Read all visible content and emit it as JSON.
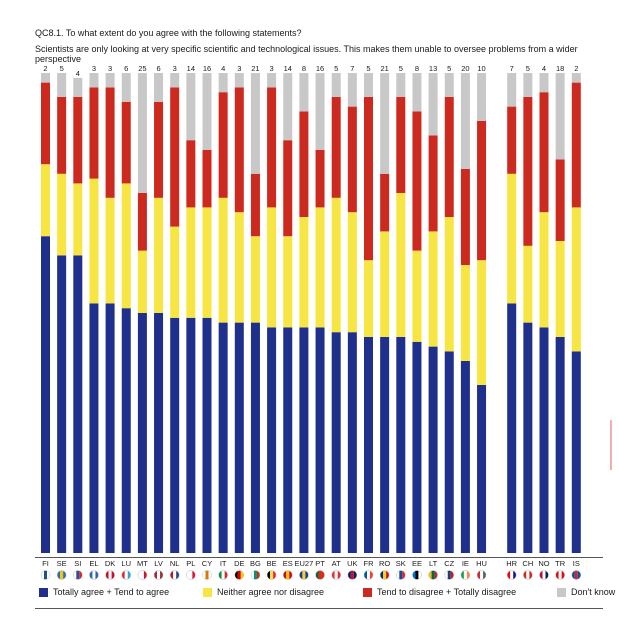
{
  "question_code": "QC8.1. To what extent do you agree with the following statements?",
  "statement": "Scientists are only looking at very specific scientific and technological issues. This makes them unable to oversee problems from a wider perspective",
  "chart_data": {
    "type": "bar",
    "stacked": true,
    "ylim": [
      0,
      100
    ],
    "categories": [
      "FI",
      "SE",
      "SI",
      "EL",
      "DK",
      "LU",
      "MT",
      "LV",
      "NL",
      "PL",
      "CY",
      "IT",
      "DE",
      "BG",
      "BE",
      "ES",
      "EU27",
      "PT",
      "AT",
      "UK",
      "FR",
      "RO",
      "SK",
      "EE",
      "LT",
      "CZ",
      "IE",
      "HU",
      "HR",
      "CH",
      "NO",
      "TR",
      "IS"
    ],
    "group_break_after": "HU",
    "series": [
      {
        "name": "Totally agree + Tend to agree",
        "color": "#1f2f8c",
        "values": [
          66,
          62,
          62,
          52,
          52,
          51,
          50,
          50,
          49,
          49,
          49,
          48,
          48,
          48,
          47,
          47,
          47,
          47,
          46,
          46,
          45,
          45,
          45,
          44,
          43,
          42,
          40,
          35,
          52,
          48,
          47,
          45,
          42
        ]
      },
      {
        "name": "Neither agree nor disagree",
        "color": "#f7e544",
        "values": [
          15,
          17,
          15,
          26,
          22,
          26,
          13,
          24,
          19,
          23,
          23,
          26,
          23,
          18,
          25,
          19,
          23,
          25,
          28,
          25,
          16,
          22,
          30,
          19,
          24,
          28,
          20,
          26,
          27,
          16,
          24,
          20,
          30
        ]
      },
      {
        "name": "Tend to disagree + Totally disagree",
        "color": "#cc2a1e",
        "values": [
          17,
          16,
          18,
          19,
          23,
          17,
          12,
          20,
          29,
          14,
          12,
          22,
          26,
          13,
          25,
          20,
          22,
          12,
          21,
          22,
          34,
          12,
          20,
          29,
          20,
          25,
          20,
          29,
          14,
          31,
          25,
          17,
          26
        ]
      },
      {
        "name": "Don't know",
        "color": "#c8c8c8",
        "values": [
          2,
          5,
          4,
          3,
          3,
          6,
          25,
          6,
          3,
          14,
          16,
          4,
          3,
          21,
          3,
          14,
          8,
          16,
          5,
          7,
          5,
          21,
          5,
          8,
          13,
          5,
          20,
          10,
          7,
          5,
          4,
          18,
          2
        ]
      }
    ],
    "legend_position": "bottom"
  },
  "flag_colors": {
    "FI": [
      "#ffffff",
      "#1d4f91",
      "#ffffff"
    ],
    "SE": [
      "#2a6ebb",
      "#f2c500",
      "#2a6ebb"
    ],
    "SI": [
      "#ffffff",
      "#2a4fa3",
      "#d52b1e"
    ],
    "EL": [
      "#2a63b8",
      "#ffffff",
      "#2a63b8"
    ],
    "DK": [
      "#c8102e",
      "#ffffff",
      "#c8102e"
    ],
    "LU": [
      "#e3242b",
      "#ffffff",
      "#2fa8e0"
    ],
    "MT": [
      "#ffffff",
      "#ffffff",
      "#cf142b"
    ],
    "LV": [
      "#9e3039",
      "#ffffff",
      "#9e3039"
    ],
    "NL": [
      "#ae1c28",
      "#ffffff",
      "#21468b"
    ],
    "PL": [
      "#ffffff",
      "#ffffff",
      "#dc143c"
    ],
    "CY": [
      "#ffffff",
      "#d57800",
      "#ffffff"
    ],
    "IT": [
      "#009246",
      "#ffffff",
      "#ce2b37"
    ],
    "DE": [
      "#000000",
      "#dd0000",
      "#ffce00"
    ],
    "BG": [
      "#ffffff",
      "#00966e",
      "#d62612"
    ],
    "BE": [
      "#000000",
      "#fae042",
      "#ed2939"
    ],
    "ES": [
      "#c60b1e",
      "#ffc400",
      "#c60b1e"
    ],
    "EU27": [
      "#1f3a9b",
      "#f7d21e",
      "#1f3a9b"
    ],
    "PT": [
      "#046a38",
      "#da291c",
      "#da291c"
    ],
    "AT": [
      "#ed2939",
      "#ffffff",
      "#ed2939"
    ],
    "UK": [
      "#012169",
      "#c8102e",
      "#012169"
    ],
    "FR": [
      "#0055a4",
      "#ffffff",
      "#ef4135"
    ],
    "RO": [
      "#002b7f",
      "#fcd116",
      "#ce1126"
    ],
    "SK": [
      "#ffffff",
      "#0b4ea2",
      "#ee1c25"
    ],
    "EE": [
      "#0072ce",
      "#000000",
      "#ffffff"
    ],
    "LT": [
      "#fdb913",
      "#006a44",
      "#c1272d"
    ],
    "CZ": [
      "#ffffff",
      "#11457e",
      "#d7141a"
    ],
    "IE": [
      "#169b62",
      "#ffffff",
      "#ff883e"
    ],
    "HU": [
      "#ce2939",
      "#ffffff",
      "#477050"
    ],
    "HR": [
      "#ff0000",
      "#ffffff",
      "#171796"
    ],
    "CH": [
      "#d52b1e",
      "#ffffff",
      "#d52b1e"
    ],
    "NO": [
      "#ba0c2f",
      "#ffffff",
      "#00205b"
    ],
    "TR": [
      "#e30a17",
      "#ffffff",
      "#e30a17"
    ],
    "IS": [
      "#02529c",
      "#dc1e35",
      "#02529c"
    ]
  }
}
